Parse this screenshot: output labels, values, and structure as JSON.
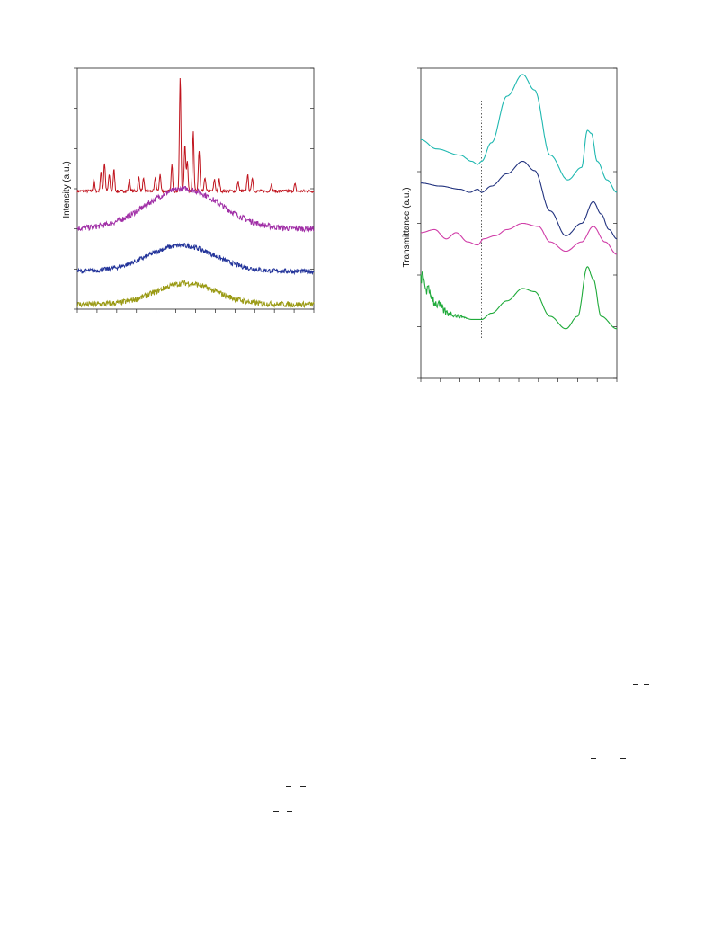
{
  "page": {
    "background": "#ffffff"
  },
  "chart_data": [
    {
      "type": "line",
      "ylabel": "Intensity (a.u.)",
      "xlabel": "",
      "x_ticks": 12,
      "y_ticks": 6,
      "grid": false,
      "legend": "none",
      "series": [
        {
          "color": "#c0141e",
          "baseline": 0.5,
          "profile": "sharp-peaks",
          "peaks": [
            {
              "x": 0.07,
              "h": 0.05
            },
            {
              "x": 0.1,
              "h": 0.08
            },
            {
              "x": 0.115,
              "h": 0.12
            },
            {
              "x": 0.135,
              "h": 0.07
            },
            {
              "x": 0.155,
              "h": 0.09
            },
            {
              "x": 0.22,
              "h": 0.05
            },
            {
              "x": 0.26,
              "h": 0.06
            },
            {
              "x": 0.28,
              "h": 0.05
            },
            {
              "x": 0.33,
              "h": 0.06
            },
            {
              "x": 0.35,
              "h": 0.07
            },
            {
              "x": 0.4,
              "h": 0.11
            },
            {
              "x": 0.435,
              "h": 0.48
            },
            {
              "x": 0.455,
              "h": 0.2
            },
            {
              "x": 0.465,
              "h": 0.13
            },
            {
              "x": 0.49,
              "h": 0.25
            },
            {
              "x": 0.515,
              "h": 0.17
            },
            {
              "x": 0.54,
              "h": 0.06
            },
            {
              "x": 0.58,
              "h": 0.05
            },
            {
              "x": 0.6,
              "h": 0.05
            },
            {
              "x": 0.68,
              "h": 0.04
            },
            {
              "x": 0.72,
              "h": 0.07
            },
            {
              "x": 0.74,
              "h": 0.06
            },
            {
              "x": 0.82,
              "h": 0.03
            },
            {
              "x": 0.92,
              "h": 0.03
            }
          ]
        },
        {
          "color": "#a02ea6",
          "baseline": 0.34,
          "profile": "broad-hump",
          "center": 0.45,
          "width": 0.22,
          "height": 0.17,
          "noise": 0.012
        },
        {
          "color": "#23349a",
          "baseline": 0.16,
          "profile": "broad-hump",
          "center": 0.44,
          "width": 0.2,
          "height": 0.11,
          "noise": 0.01
        },
        {
          "color": "#9a9a14",
          "baseline": 0.02,
          "profile": "broad-hump",
          "center": 0.46,
          "width": 0.18,
          "height": 0.09,
          "noise": 0.012
        }
      ]
    },
    {
      "type": "line",
      "ylabel": "Transmittance (a.u.)",
      "xlabel": "",
      "x_ticks": 10,
      "y_ticks": 6,
      "grid": false,
      "legend": "none",
      "reference_line": {
        "x": 0.31,
        "style": "dotted"
      },
      "series": [
        {
          "color": "#1fb8b0",
          "points": [
            [
              0.0,
              0.77
            ],
            [
              0.08,
              0.74
            ],
            [
              0.2,
              0.72
            ],
            [
              0.26,
              0.7
            ],
            [
              0.29,
              0.69
            ],
            [
              0.31,
              0.7
            ],
            [
              0.36,
              0.76
            ],
            [
              0.44,
              0.91
            ],
            [
              0.52,
              0.98
            ],
            [
              0.58,
              0.93
            ],
            [
              0.66,
              0.72
            ],
            [
              0.75,
              0.64
            ],
            [
              0.82,
              0.68
            ],
            [
              0.85,
              0.8
            ],
            [
              0.87,
              0.79
            ],
            [
              0.9,
              0.7
            ],
            [
              0.95,
              0.64
            ],
            [
              1.0,
              0.6
            ]
          ]
        },
        {
          "color": "#22337f",
          "points": [
            [
              0.0,
              0.63
            ],
            [
              0.1,
              0.62
            ],
            [
              0.2,
              0.61
            ],
            [
              0.25,
              0.6
            ],
            [
              0.29,
              0.61
            ],
            [
              0.31,
              0.6
            ],
            [
              0.36,
              0.62
            ],
            [
              0.44,
              0.66
            ],
            [
              0.52,
              0.7
            ],
            [
              0.58,
              0.67
            ],
            [
              0.66,
              0.54
            ],
            [
              0.74,
              0.46
            ],
            [
              0.82,
              0.5
            ],
            [
              0.88,
              0.57
            ],
            [
              0.92,
              0.53
            ],
            [
              0.96,
              0.48
            ],
            [
              1.0,
              0.45
            ]
          ]
        },
        {
          "color": "#d03ea8",
          "points": [
            [
              0.0,
              0.47
            ],
            [
              0.07,
              0.48
            ],
            [
              0.13,
              0.45
            ],
            [
              0.18,
              0.47
            ],
            [
              0.24,
              0.44
            ],
            [
              0.29,
              0.43
            ],
            [
              0.32,
              0.45
            ],
            [
              0.38,
              0.46
            ],
            [
              0.44,
              0.48
            ],
            [
              0.52,
              0.5
            ],
            [
              0.6,
              0.49
            ],
            [
              0.66,
              0.44
            ],
            [
              0.74,
              0.41
            ],
            [
              0.82,
              0.44
            ],
            [
              0.88,
              0.49
            ],
            [
              0.94,
              0.44
            ],
            [
              1.0,
              0.4
            ]
          ]
        },
        {
          "color": "#1faa3a",
          "noise_from": 0.0,
          "noise_to": 0.25,
          "points": [
            [
              0.0,
              0.33
            ],
            [
              0.04,
              0.28
            ],
            [
              0.08,
              0.24
            ],
            [
              0.14,
              0.21
            ],
            [
              0.2,
              0.2
            ],
            [
              0.26,
              0.19
            ],
            [
              0.31,
              0.19
            ],
            [
              0.36,
              0.21
            ],
            [
              0.44,
              0.25
            ],
            [
              0.52,
              0.29
            ],
            [
              0.58,
              0.28
            ],
            [
              0.66,
              0.2
            ],
            [
              0.74,
              0.16
            ],
            [
              0.8,
              0.2
            ],
            [
              0.85,
              0.36
            ],
            [
              0.88,
              0.32
            ],
            [
              0.92,
              0.2
            ],
            [
              1.0,
              0.16
            ]
          ]
        }
      ]
    }
  ]
}
